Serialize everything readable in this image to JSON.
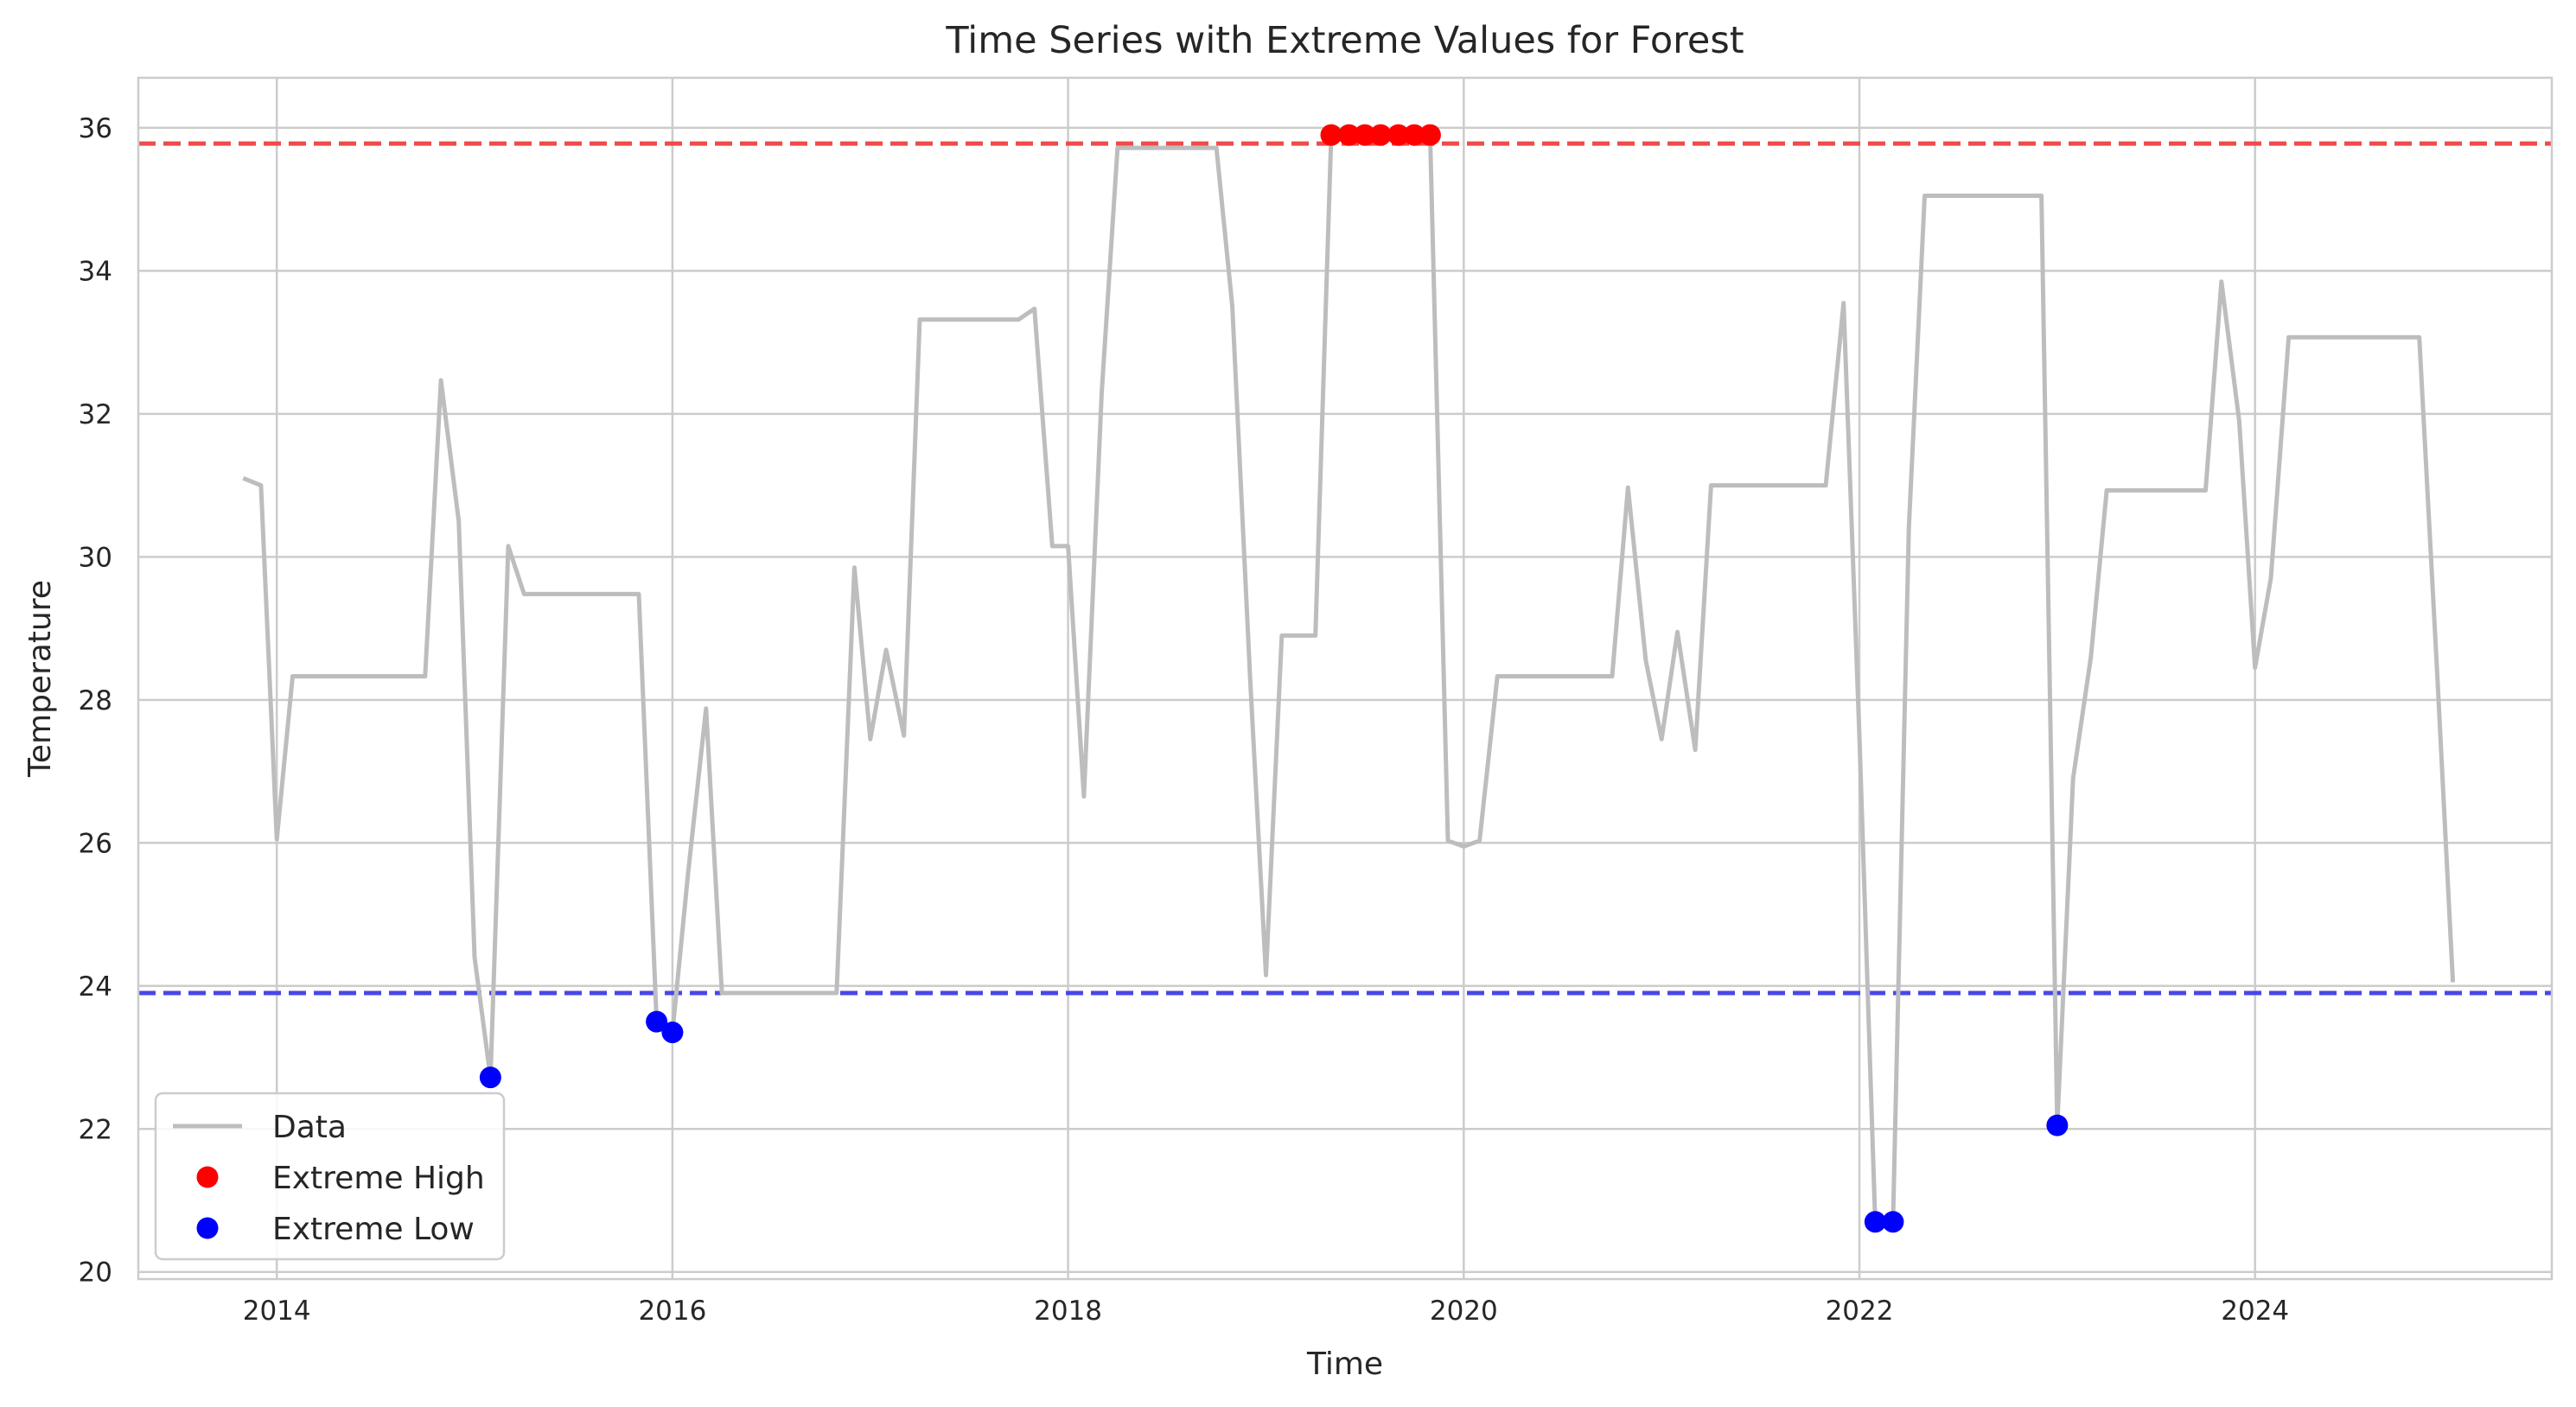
{
  "chart_data": {
    "type": "line",
    "title": "Time Series with Extreme Values for Forest",
    "xlabel": "Time",
    "ylabel": "Temperature",
    "xlim": [
      2013.3,
      2025.5
    ],
    "ylim": [
      19.9,
      36.7
    ],
    "xticks": [
      2014,
      2016,
      2018,
      2020,
      2022,
      2024
    ],
    "yticks": [
      20,
      22,
      24,
      26,
      28,
      30,
      32,
      34,
      36
    ],
    "grid": true,
    "legend_position": "bottom-left",
    "thresholds": [
      {
        "name": "upper",
        "value": 35.78,
        "color": "#f04a4a"
      },
      {
        "name": "lower",
        "value": 23.9,
        "color": "#4747e8"
      }
    ],
    "series": [
      {
        "name": "Data",
        "color": "#bdbdbd",
        "points": [
          [
            2013.83,
            31.1
          ],
          [
            2013.92,
            31.0
          ],
          [
            2014.0,
            26.05
          ],
          [
            2014.08,
            28.33
          ],
          [
            2014.17,
            28.33
          ],
          [
            2014.25,
            28.33
          ],
          [
            2014.33,
            28.33
          ],
          [
            2014.42,
            28.33
          ],
          [
            2014.5,
            28.33
          ],
          [
            2014.58,
            28.33
          ],
          [
            2014.67,
            28.33
          ],
          [
            2014.75,
            28.33
          ],
          [
            2014.83,
            32.47
          ],
          [
            2014.92,
            30.5
          ],
          [
            2015.0,
            24.4
          ],
          [
            2015.08,
            22.72
          ],
          [
            2015.17,
            30.15
          ],
          [
            2015.25,
            29.48
          ],
          [
            2015.33,
            29.48
          ],
          [
            2015.42,
            29.48
          ],
          [
            2015.5,
            29.48
          ],
          [
            2015.58,
            29.48
          ],
          [
            2015.67,
            29.48
          ],
          [
            2015.75,
            29.48
          ],
          [
            2015.83,
            29.48
          ],
          [
            2015.92,
            23.5
          ],
          [
            2016.0,
            23.35
          ],
          [
            2016.08,
            25.6
          ],
          [
            2016.17,
            27.88
          ],
          [
            2016.25,
            23.9
          ],
          [
            2016.33,
            23.9
          ],
          [
            2016.42,
            23.9
          ],
          [
            2016.5,
            23.9
          ],
          [
            2016.58,
            23.9
          ],
          [
            2016.67,
            23.9
          ],
          [
            2016.75,
            23.9
          ],
          [
            2016.83,
            23.9
          ],
          [
            2016.92,
            29.85
          ],
          [
            2017.0,
            27.45
          ],
          [
            2017.08,
            28.7
          ],
          [
            2017.17,
            27.5
          ],
          [
            2017.25,
            33.32
          ],
          [
            2017.33,
            33.32
          ],
          [
            2017.42,
            33.32
          ],
          [
            2017.5,
            33.32
          ],
          [
            2017.58,
            33.32
          ],
          [
            2017.67,
            33.32
          ],
          [
            2017.75,
            33.32
          ],
          [
            2017.83,
            33.47
          ],
          [
            2017.92,
            30.15
          ],
          [
            2018.0,
            30.15
          ],
          [
            2018.08,
            26.65
          ],
          [
            2018.17,
            32.3
          ],
          [
            2018.25,
            35.72
          ],
          [
            2018.33,
            35.72
          ],
          [
            2018.42,
            35.72
          ],
          [
            2018.5,
            35.72
          ],
          [
            2018.58,
            35.72
          ],
          [
            2018.67,
            35.72
          ],
          [
            2018.75,
            35.72
          ],
          [
            2018.83,
            33.5
          ],
          [
            2018.92,
            28.3
          ],
          [
            2019.0,
            24.15
          ],
          [
            2019.08,
            28.9
          ],
          [
            2019.17,
            28.9
          ],
          [
            2019.25,
            28.9
          ],
          [
            2019.33,
            35.9
          ],
          [
            2019.42,
            35.9
          ],
          [
            2019.5,
            35.9
          ],
          [
            2019.58,
            35.9
          ],
          [
            2019.67,
            35.9
          ],
          [
            2019.75,
            35.9
          ],
          [
            2019.83,
            35.9
          ],
          [
            2019.92,
            26.03
          ],
          [
            2020.0,
            25.95
          ],
          [
            2020.08,
            26.03
          ],
          [
            2020.17,
            28.33
          ],
          [
            2020.25,
            28.33
          ],
          [
            2020.33,
            28.33
          ],
          [
            2020.42,
            28.33
          ],
          [
            2020.5,
            28.33
          ],
          [
            2020.58,
            28.33
          ],
          [
            2020.67,
            28.33
          ],
          [
            2020.75,
            28.33
          ],
          [
            2020.83,
            30.97
          ],
          [
            2020.92,
            28.55
          ],
          [
            2021.0,
            27.45
          ],
          [
            2021.08,
            28.95
          ],
          [
            2021.17,
            27.3
          ],
          [
            2021.25,
            31.0
          ],
          [
            2021.33,
            31.0
          ],
          [
            2021.42,
            31.0
          ],
          [
            2021.5,
            31.0
          ],
          [
            2021.58,
            31.0
          ],
          [
            2021.67,
            31.0
          ],
          [
            2021.75,
            31.0
          ],
          [
            2021.83,
            31.0
          ],
          [
            2021.92,
            33.55
          ],
          [
            2022.0,
            27.5
          ],
          [
            2022.08,
            20.7
          ],
          [
            2022.17,
            20.7
          ],
          [
            2022.25,
            30.4
          ],
          [
            2022.33,
            35.05
          ],
          [
            2022.42,
            35.05
          ],
          [
            2022.5,
            35.05
          ],
          [
            2022.58,
            35.05
          ],
          [
            2022.67,
            35.05
          ],
          [
            2022.75,
            35.05
          ],
          [
            2022.83,
            35.05
          ],
          [
            2022.92,
            35.05
          ],
          [
            2023.0,
            22.05
          ],
          [
            2023.08,
            26.9
          ],
          [
            2023.17,
            28.6
          ],
          [
            2023.25,
            30.93
          ],
          [
            2023.33,
            30.93
          ],
          [
            2023.42,
            30.93
          ],
          [
            2023.5,
            30.93
          ],
          [
            2023.58,
            30.93
          ],
          [
            2023.67,
            30.93
          ],
          [
            2023.75,
            30.93
          ],
          [
            2023.83,
            33.85
          ],
          [
            2023.92,
            31.9
          ],
          [
            2024.0,
            28.45
          ],
          [
            2024.08,
            29.7
          ],
          [
            2024.17,
            33.07
          ],
          [
            2024.25,
            33.07
          ],
          [
            2024.33,
            33.07
          ],
          [
            2024.42,
            33.07
          ],
          [
            2024.5,
            33.07
          ],
          [
            2024.58,
            33.07
          ],
          [
            2024.67,
            33.07
          ],
          [
            2024.75,
            33.07
          ],
          [
            2024.83,
            33.07
          ],
          [
            2024.92,
            28.4
          ],
          [
            2025.0,
            24.05
          ]
        ]
      },
      {
        "name": "Extreme High",
        "color": "#ff0000",
        "type": "scatter",
        "points": [
          [
            2019.33,
            35.9
          ],
          [
            2019.42,
            35.9
          ],
          [
            2019.5,
            35.9
          ],
          [
            2019.58,
            35.9
          ],
          [
            2019.67,
            35.9
          ],
          [
            2019.75,
            35.9
          ],
          [
            2019.83,
            35.9
          ]
        ]
      },
      {
        "name": "Extreme Low",
        "color": "#0000ff",
        "type": "scatter",
        "points": [
          [
            2015.08,
            22.72
          ],
          [
            2015.92,
            23.5
          ],
          [
            2016.0,
            23.35
          ],
          [
            2022.08,
            20.7
          ],
          [
            2022.17,
            20.7
          ],
          [
            2023.0,
            22.05
          ]
        ]
      }
    ]
  }
}
